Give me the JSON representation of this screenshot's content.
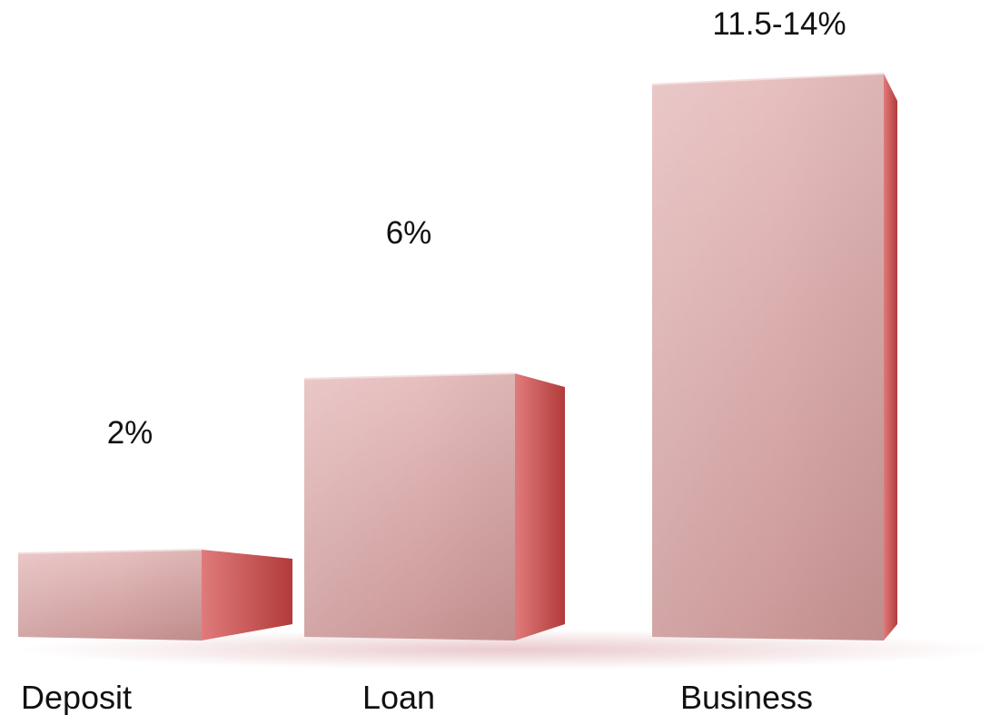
{
  "chart_data": {
    "type": "bar",
    "categories": [
      "Deposit",
      "Loan",
      "Business"
    ],
    "values": [
      2,
      6,
      12.75
    ],
    "value_labels": [
      "2%",
      "6%",
      "11.5-14%"
    ],
    "ylim": [
      0,
      14
    ],
    "grid": false,
    "legend": "none",
    "colors": {
      "front_top": "#e6bcbc",
      "front_bottom": "#c89292",
      "side_light": "#e07b7b",
      "side_dark": "#b23b3b",
      "shadow": "#e2b8bc"
    }
  }
}
